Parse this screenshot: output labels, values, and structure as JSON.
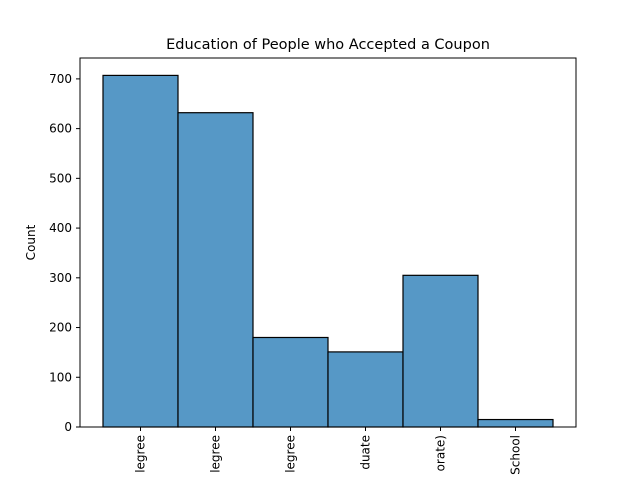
{
  "chart_data": {
    "type": "bar",
    "title": "Education of People who Accepted a Coupon",
    "xlabel": "",
    "ylabel": "Count",
    "categories": [
      "legree",
      "legree",
      "legree",
      "duate",
      "orate)",
      "School"
    ],
    "values": [
      707,
      632,
      180,
      151,
      305,
      15
    ],
    "ylim": [
      0,
      742
    ],
    "yticks": [
      0,
      100,
      200,
      300,
      400,
      500,
      600,
      700
    ],
    "grid": false,
    "bar_color": "#5698c6",
    "edge_color": "#000000"
  }
}
